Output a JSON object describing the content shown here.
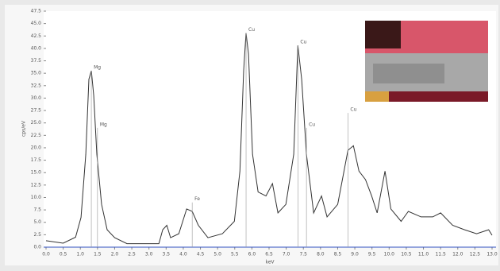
{
  "chart_data": {
    "type": "line",
    "x_label": "keV",
    "y_label": "cps/eV",
    "x": [
      0,
      0.5,
      0.86,
      1.02,
      1.16,
      1.25,
      1.32,
      1.39,
      1.48,
      1.62,
      1.78,
      2.0,
      2.36,
      3.29,
      3.4,
      3.52,
      3.63,
      3.87,
      4.1,
      4.26,
      4.44,
      4.72,
      5.14,
      5.49,
      5.65,
      5.76,
      5.83,
      5.9,
      6.02,
      6.18,
      6.41,
      6.6,
      6.76,
      6.99,
      7.22,
      7.34,
      7.45,
      7.59,
      7.8,
      8.03,
      8.19,
      8.5,
      8.8,
      8.96,
      9.12,
      9.31,
      9.49,
      9.65,
      9.88,
      10.05,
      10.35,
      10.56,
      10.93,
      11.27,
      11.5,
      11.85,
      12.2,
      12.55,
      12.9,
      13
    ],
    "series": [
      {
        "color": "#333333",
        "values": [
          1.3,
          0.8,
          2,
          6,
          18.7,
          33.8,
          35.5,
          30.5,
          18.7,
          8.6,
          3.5,
          1.9,
          0.7,
          0.7,
          3.5,
          4.4,
          1.9,
          2.7,
          7.7,
          7.2,
          4.4,
          1.9,
          2.7,
          5.2,
          15.3,
          35.5,
          43.1,
          38.9,
          18.7,
          11.1,
          10.3,
          12.8,
          6.9,
          8.6,
          18.7,
          40.6,
          33.8,
          18.7,
          6.9,
          10.3,
          6.1,
          8.6,
          19.5,
          20.4,
          15.3,
          13.6,
          10.3,
          6.9,
          15.3,
          7.7,
          5.2,
          7.2,
          6.1,
          6.1,
          6.9,
          4.4,
          3.5,
          2.7,
          3.5,
          2.4
        ]
      }
    ],
    "annotations": [
      {
        "label": "Mg",
        "x": 1.32,
        "y": 35.5
      },
      {
        "label": "Mg",
        "x": 1.5,
        "y": 24
      },
      {
        "label": "Fe",
        "x": 4.26,
        "y": 9
      },
      {
        "label": "Cu",
        "x": 5.83,
        "y": 43.1
      },
      {
        "label": "Cu",
        "x": 7.34,
        "y": 40.6
      },
      {
        "label": "Cu",
        "x": 7.59,
        "y": 24
      },
      {
        "label": "Cu",
        "x": 8.8,
        "y": 27
      }
    ],
    "baseline_color": "#3050c0",
    "xlim": [
      0,
      13
    ],
    "xticks": [
      {
        "value": 0,
        "label": "0.0"
      },
      0.5,
      {
        "value": 1,
        "label": "1.0"
      },
      1.5,
      {
        "value": 2,
        "label": "2.0"
      },
      2.5,
      {
        "value": 3,
        "label": "3.0"
      },
      3.5,
      {
        "value": 4,
        "label": "4.0"
      },
      4.5,
      {
        "value": 5,
        "label": "5.0"
      },
      5.5,
      {
        "value": 6,
        "label": "6.0"
      },
      6.5,
      {
        "value": 7,
        "label": "7.0"
      },
      7.5,
      {
        "value": 8,
        "label": "8.0"
      },
      8.5,
      {
        "value": 9,
        "label": "9.0"
      },
      9.5,
      {
        "value": 10,
        "label": "10.0"
      },
      10.5,
      {
        "value": 11,
        "label": "11.0"
      },
      11.5,
      {
        "value": 12,
        "label": "12.0"
      },
      12.5,
      {
        "value": 13,
        "label": "13.0"
      }
    ],
    "ylim": [
      0,
      47.5
    ],
    "yticks": [
      {
        "value": 0,
        "label": "0.0"
      },
      2.5,
      {
        "value": 5,
        "label": "5.0"
      },
      7.5,
      {
        "value": 10,
        "label": "10.0"
      },
      12.5,
      {
        "value": 15,
        "label": "15.0"
      },
      17.5,
      {
        "value": 20,
        "label": "20.0"
      },
      22.5,
      {
        "value": 25,
        "label": "25.0"
      },
      27.5,
      {
        "value": 30,
        "label": "30.0"
      },
      32.5,
      {
        "value": 35,
        "label": "35.0"
      },
      37.5,
      {
        "value": 40,
        "label": "40.0"
      },
      42.5,
      {
        "value": 45,
        "label": "45.0"
      },
      47.5
    ]
  }
}
